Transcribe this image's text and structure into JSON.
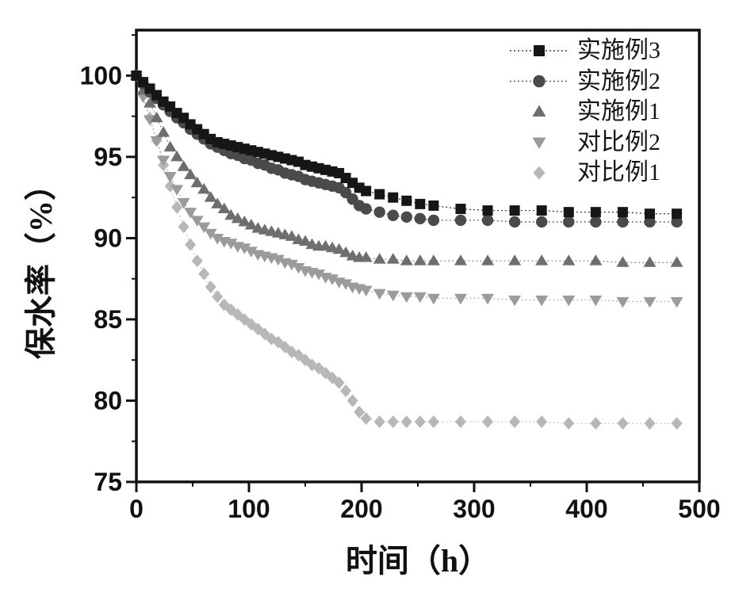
{
  "figure": {
    "background_color": "#ffffff",
    "frame_color": "#111111",
    "tick_label_color": "#111111"
  },
  "chart_data": {
    "type": "line",
    "title": "",
    "xlabel": "时间（h）",
    "ylabel": "保水率（%）",
    "xlim": [
      0,
      500
    ],
    "ylim": [
      75,
      102.8
    ],
    "grid": false,
    "legend_position": "top-right-inside",
    "x_axis": {
      "major_ticks": [
        0,
        100,
        200,
        300,
        400,
        500
      ],
      "tick_labels": [
        "0",
        "100",
        "200",
        "300",
        "400",
        "500"
      ],
      "minor_ticks": [
        50,
        150,
        250,
        350,
        450
      ]
    },
    "y_axis": {
      "major_ticks": [
        75,
        80,
        85,
        90,
        95,
        100
      ],
      "tick_labels": [
        "75",
        "80",
        "85",
        "90",
        "95",
        "100"
      ],
      "minor_ticks": [
        77.5,
        82.5,
        87.5,
        92.5,
        97.5,
        102.5
      ]
    },
    "x": [
      0,
      6,
      12,
      18,
      24,
      30,
      36,
      42,
      48,
      54,
      60,
      66,
      72,
      78,
      84,
      90,
      96,
      102,
      108,
      114,
      120,
      126,
      132,
      138,
      144,
      150,
      156,
      162,
      168,
      174,
      180,
      186,
      192,
      198,
      204,
      216,
      228,
      240,
      252,
      264,
      288,
      312,
      336,
      360,
      384,
      408,
      432,
      456,
      480
    ],
    "series": [
      {
        "name": "实施例3",
        "marker": "square",
        "color": "#161616",
        "line_color": "#3c3c3c",
        "legend_line": true,
        "values": [
          100,
          99.6,
          99.2,
          98.8,
          98.4,
          98.1,
          97.7,
          97.4,
          97,
          96.7,
          96.4,
          96.1,
          95.9,
          95.8,
          95.7,
          95.6,
          95.5,
          95.4,
          95.3,
          95.2,
          95.1,
          95,
          94.9,
          94.8,
          94.7,
          94.5,
          94.4,
          94.3,
          94.2,
          94.1,
          94,
          93.7,
          93.4,
          93.1,
          92.9,
          92.7,
          92.5,
          92.3,
          92.1,
          92,
          91.8,
          91.7,
          91.7,
          91.7,
          91.6,
          91.6,
          91.6,
          91.5,
          91.5
        ]
      },
      {
        "name": "实施例2",
        "marker": "circle",
        "color": "#4a4a4a",
        "line_color": "#5f5f5f",
        "legend_line": true,
        "values": [
          100,
          99.5,
          99,
          98.6,
          98.2,
          97.8,
          97.4,
          97.1,
          96.7,
          96.4,
          96.1,
          95.8,
          95.6,
          95.4,
          95.2,
          95.1,
          94.9,
          94.8,
          94.6,
          94.5,
          94.3,
          94.2,
          94,
          93.9,
          93.8,
          93.6,
          93.5,
          93.4,
          93.3,
          93.2,
          93.1,
          92.8,
          92.4,
          92,
          91.8,
          91.6,
          91.4,
          91.3,
          91.2,
          91.1,
          91.1,
          91.1,
          91,
          91,
          91,
          91,
          91,
          91,
          91
        ]
      },
      {
        "name": "实施例1",
        "marker": "triangle-up",
        "color": "#6e6e6e",
        "line_color": "#8c8c8c",
        "legend_line": false,
        "values": [
          100,
          99.1,
          98.3,
          97.4,
          96.5,
          95.6,
          95,
          94.4,
          93.9,
          93.4,
          93,
          92.5,
          92.1,
          91.8,
          91.4,
          91.2,
          91,
          90.8,
          90.6,
          90.5,
          90.4,
          90.3,
          90.2,
          90.1,
          89.9,
          89.8,
          89.6,
          89.5,
          89.5,
          89.4,
          89.3,
          89.1,
          88.9,
          88.8,
          88.8,
          88.7,
          88.7,
          88.6,
          88.6,
          88.6,
          88.6,
          88.6,
          88.6,
          88.6,
          88.6,
          88.6,
          88.5,
          88.5,
          88.5
        ]
      },
      {
        "name": "对比例2",
        "marker": "triangle-down",
        "color": "#9b9b9b",
        "line_color": "#b2b2b2",
        "legend_line": false,
        "values": [
          100,
          98.7,
          97.3,
          96,
          94.8,
          93.8,
          93,
          92.2,
          91.6,
          91.1,
          90.7,
          90.3,
          90,
          89.8,
          89.7,
          89.5,
          89.4,
          89.2,
          89,
          88.9,
          88.8,
          88.7,
          88.5,
          88.4,
          88.2,
          88,
          87.9,
          87.8,
          87.6,
          87.5,
          87.3,
          87.2,
          87,
          86.9,
          86.8,
          86.6,
          86.5,
          86.4,
          86.4,
          86.3,
          86.3,
          86.3,
          86.2,
          86.2,
          86.2,
          86.2,
          86.1,
          86.1,
          86.1
        ]
      },
      {
        "name": "对比例1",
        "marker": "diamond",
        "color": "#b7b7b7",
        "line_color": "#c9c9c9",
        "legend_line": false,
        "values": [
          100,
          98.8,
          97.4,
          96,
          94.5,
          93.2,
          91.9,
          90.7,
          89.6,
          88.6,
          87.8,
          87,
          86.4,
          85.9,
          85.6,
          85.3,
          85,
          84.7,
          84.4,
          84.1,
          83.8,
          83.6,
          83.3,
          83,
          82.8,
          82.5,
          82.2,
          82,
          81.7,
          81.4,
          81.1,
          80.6,
          80,
          79.3,
          78.9,
          78.7,
          78.7,
          78.7,
          78.7,
          78.7,
          78.7,
          78.7,
          78.7,
          78.7,
          78.6,
          78.6,
          78.6,
          78.6,
          78.6
        ]
      }
    ]
  }
}
